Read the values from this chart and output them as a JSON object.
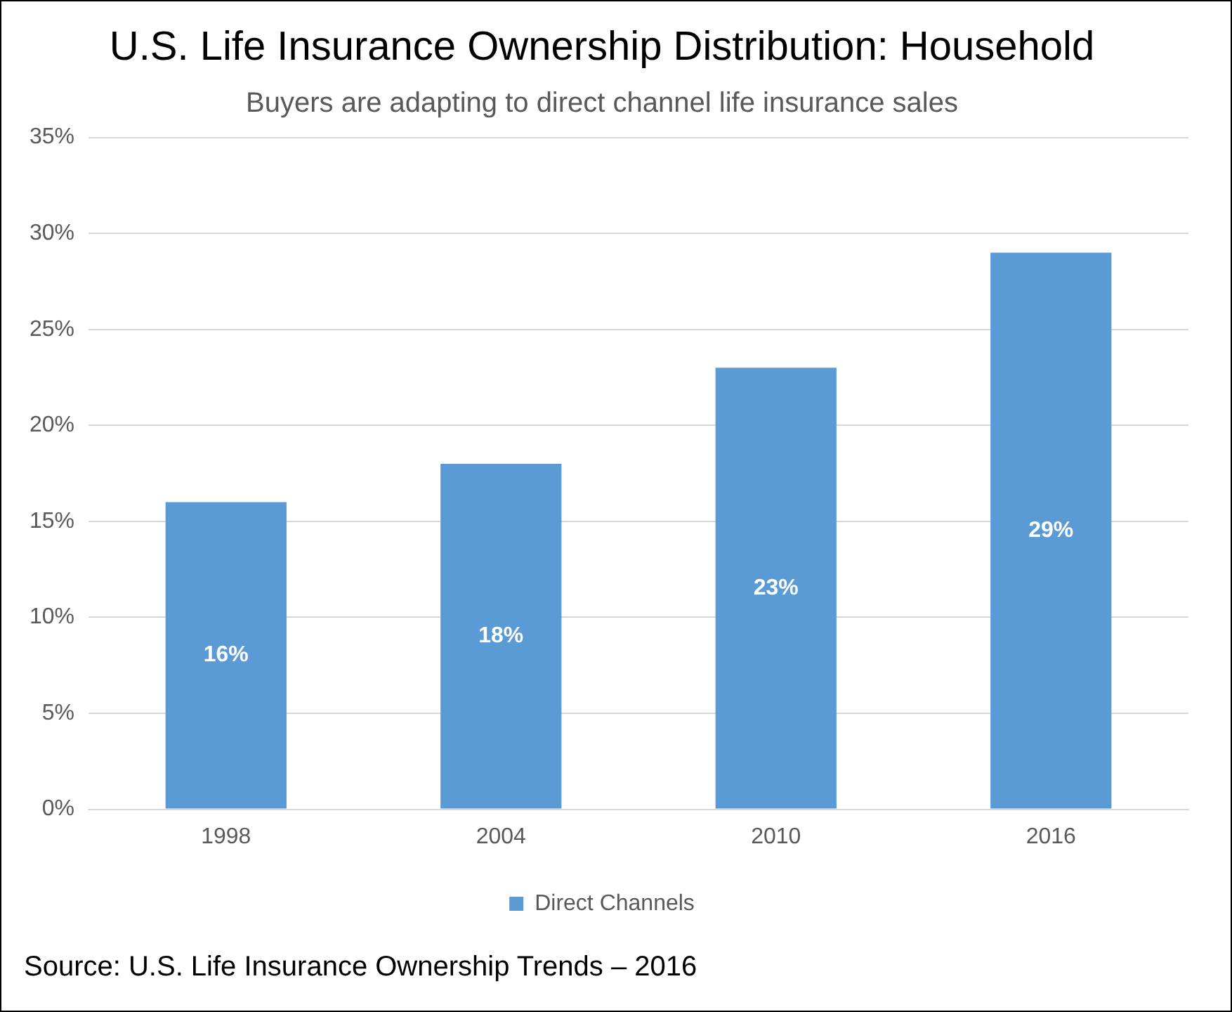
{
  "chart_data": {
    "type": "bar",
    "title": "U.S. Life Insurance Ownership Distribution: Household",
    "subtitle": "Buyers are adapting to direct channel life insurance sales",
    "categories": [
      "1998",
      "2004",
      "2010",
      "2016"
    ],
    "series": [
      {
        "name": "Direct Channels",
        "color": "#5b9bd5",
        "values": [
          16,
          18,
          23,
          29
        ]
      }
    ],
    "ylim": [
      0,
      35
    ],
    "yticks": [
      {
        "value": 0,
        "label": "0%"
      },
      {
        "value": 5,
        "label": "5%"
      },
      {
        "value": 10,
        "label": "10%"
      },
      {
        "value": 15,
        "label": "15%"
      },
      {
        "value": 20,
        "label": "20%"
      },
      {
        "value": 25,
        "label": "25%"
      },
      {
        "value": 30,
        "label": "30%"
      },
      {
        "value": 35,
        "label": "35%"
      }
    ],
    "value_labels": [
      "16%",
      "18%",
      "23%",
      "29%"
    ],
    "grid": "y",
    "legend": "bottom",
    "annotations": [
      "Source: U.S. Life Insurance Ownership Trends – 2016"
    ]
  }
}
